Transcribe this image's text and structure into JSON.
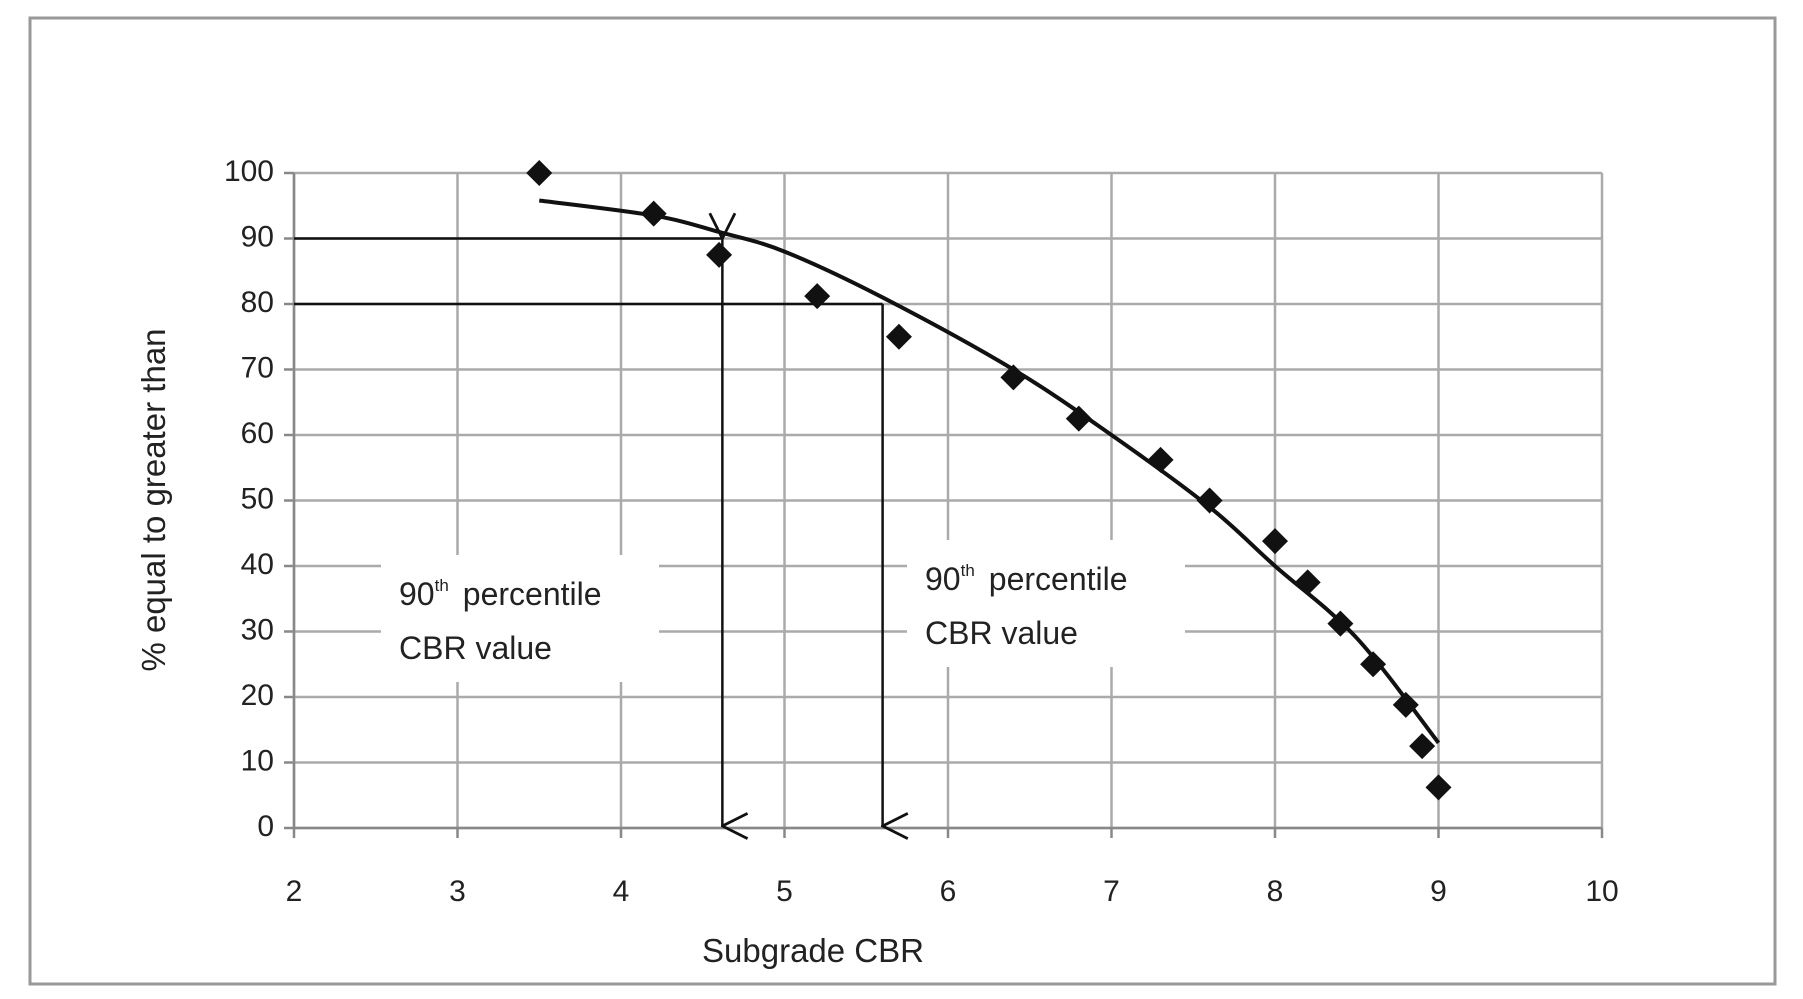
{
  "chart_data": {
    "type": "scatter",
    "x_label": "Subgrade CBR",
    "y_label": "% equal to greater than",
    "xlim": [
      2,
      10
    ],
    "xticks": [
      2,
      3,
      4,
      5,
      6,
      7,
      8,
      9,
      10
    ],
    "ylim": [
      0,
      100
    ],
    "yticks": [
      0,
      10,
      20,
      30,
      40,
      50,
      60,
      70,
      80,
      90,
      100
    ],
    "grid": true,
    "series": [
      {
        "color": "#111111",
        "x": [
          3.5,
          4.2,
          4.6,
          5.2,
          5.7,
          6.4,
          6.8,
          7.3,
          7.6,
          8.0,
          8.2,
          8.4,
          8.6,
          8.8,
          8.9,
          9.0
        ],
        "values": [
          100,
          93.8,
          87.5,
          81.2,
          75,
          68.8,
          62.5,
          56.2,
          50,
          43.8,
          37.5,
          31.2,
          25,
          18.8,
          12.5,
          6.2
        ]
      }
    ],
    "trend": {
      "color": "#111111",
      "x": [
        3.5,
        4.2,
        4.6,
        5.0,
        5.6,
        6.4,
        7.0,
        7.6,
        8.0,
        8.5,
        9.0
      ],
      "values": [
        95.8,
        93.5,
        91,
        88,
        81,
        70,
        60,
        49,
        40,
        29,
        13
      ]
    },
    "reference_lines": [
      {
        "x": 4.62,
        "y": 90
      },
      {
        "x": 5.6,
        "y": 80
      }
    ],
    "annotations": [
      {
        "main": "90",
        "sup": "th",
        "rest": "percentile",
        "line2": "CBR value"
      },
      {
        "main": "90",
        "sup": "th",
        "rest": "percentile",
        "line2": "CBR value"
      }
    ]
  }
}
